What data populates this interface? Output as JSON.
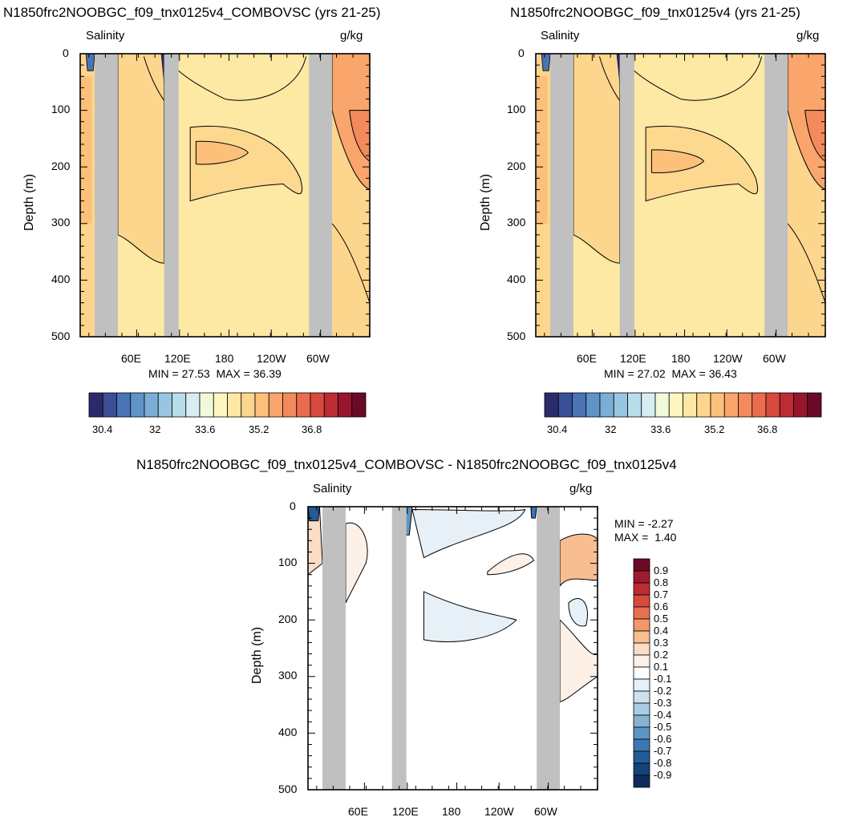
{
  "chart_data": [
    {
      "type": "heatmap",
      "title": "N1850frc2NOOBGC_f09_tnx0125v4_COMBOVSC (yrs 21-25)",
      "left_label": "Salinity",
      "right_label": "g/kg",
      "ylabel": "Depth (m)",
      "y_ticks": [
        "0",
        "100",
        "200",
        "300",
        "400",
        "500"
      ],
      "x_ticks": [
        "60E",
        "120E",
        "180",
        "120W",
        "60W"
      ],
      "min_label": "MIN =",
      "min_value": "27.53",
      "max_label": "MAX =",
      "max_value": "36.39",
      "ylim": [
        0,
        500
      ],
      "colorbar_labels": [
        "30.4",
        "32",
        "33.6",
        "35.2",
        "36.8"
      ]
    },
    {
      "type": "heatmap",
      "title": "N1850frc2NOOBGC_f09_tnx0125v4 (yrs 21-25)",
      "left_label": "Salinity",
      "right_label": "g/kg",
      "ylabel": "Depth (m)",
      "y_ticks": [
        "0",
        "100",
        "200",
        "300",
        "400",
        "500"
      ],
      "x_ticks": [
        "60E",
        "120E",
        "180",
        "120W",
        "60W"
      ],
      "min_label": "MIN =",
      "min_value": "27.02",
      "max_label": "MAX =",
      "max_value": "36.43",
      "ylim": [
        0,
        500
      ],
      "colorbar_labels": [
        "30.4",
        "32",
        "33.6",
        "35.2",
        "36.8"
      ]
    },
    {
      "type": "heatmap",
      "title": "N1850frc2NOOBGC_f09_tnx0125v4_COMBOVSC - N1850frc2NOOBGC_f09_tnx0125v4",
      "left_label": "Salinity",
      "right_label": "g/kg",
      "ylabel": "Depth (m)",
      "y_ticks": [
        "0",
        "100",
        "200",
        "300",
        "400",
        "500"
      ],
      "x_ticks": [
        "60E",
        "120E",
        "180",
        "120W",
        "60W"
      ],
      "min_label": "MIN =",
      "min_value": "-2.27",
      "max_label": "MAX =",
      "max_value": "1.40",
      "ylim": [
        0,
        500
      ],
      "colorbar_labels": [
        "0.9",
        "0.8",
        "0.7",
        "0.6",
        "0.5",
        "0.4",
        "0.3",
        "0.2",
        "0.1",
        "-0.1",
        "-0.2",
        "-0.3",
        "-0.4",
        "-0.5",
        "-0.6",
        "-0.7",
        "-0.8",
        "-0.9"
      ]
    }
  ],
  "colors": {
    "land": "#c0c0c0",
    "seq_palette": [
      "#2b2a6b",
      "#3a4f96",
      "#4a74b4",
      "#5e94c8",
      "#7aaed6",
      "#98c6e1",
      "#b7dcea",
      "#d6eef2",
      "#f1f9d9",
      "#fdf6c0",
      "#fde8a4",
      "#fdd68d",
      "#fcc07b",
      "#f9a56b",
      "#f38a5c",
      "#e96c4e",
      "#d94a3e",
      "#bd2b34",
      "#97162d",
      "#6b0a27"
    ],
    "diff_palette": [
      "#6b0a27",
      "#9f1a2d",
      "#bd2b34",
      "#d7493c",
      "#e8704f",
      "#f39869",
      "#f8bd91",
      "#fbdcc4",
      "#fdf0e6",
      "#ffffff",
      "#e7f0f6",
      "#cde1ee",
      "#aacbe2",
      "#86b2d4",
      "#5f95c4",
      "#3d77b1",
      "#245a97",
      "#15427a",
      "#0c2d5c"
    ],
    "upper_light": "#fde8a4",
    "upper_mid": "#fdd68d",
    "upper_orange": "#fcc07b",
    "upper_dark_orange": "#f9a56b",
    "upper_red_orange": "#f38a5c"
  }
}
